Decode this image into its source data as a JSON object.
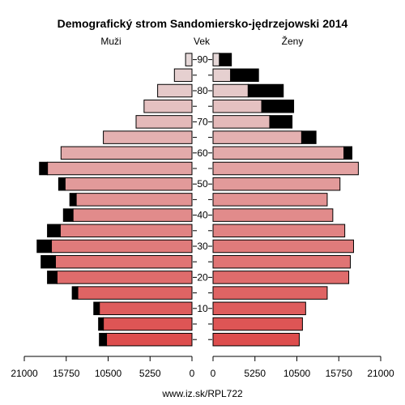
{
  "chart_data": {
    "type": "population-pyramid",
    "title": "Demografický strom Sandomiersko-jędrzejowski 2014",
    "left_label": "Muži",
    "center_label": "Vek",
    "right_label": "Ženy",
    "source": "www.iz.sk/RPL722",
    "x_ticks": [
      "21000",
      "15750",
      "10500",
      "5250",
      "0",
      "5250",
      "10500",
      "15750",
      "21000"
    ],
    "age_ticks": [
      "10",
      "20",
      "30",
      "40",
      "50",
      "60",
      "70",
      "80",
      "90"
    ],
    "xlim": [
      0,
      21000
    ],
    "age_groups": [
      "0-4",
      "5-9",
      "10-14",
      "15-19",
      "20-24",
      "25-29",
      "30-34",
      "35-39",
      "40-44",
      "45-49",
      "50-54",
      "55-59",
      "60-64",
      "65-69",
      "70-74",
      "75-79",
      "80-84",
      "85-89",
      "90+"
    ],
    "male_base": [
      10700,
      11100,
      11600,
      14300,
      16900,
      17100,
      17600,
      16500,
      14900,
      14500,
      15900,
      18100,
      16400,
      11100,
      7000,
      6000,
      4300,
      2200,
      800
    ],
    "male_excess": [
      900,
      600,
      700,
      700,
      1200,
      1800,
      1800,
      1600,
      1200,
      800,
      800,
      1000,
      0,
      0,
      0,
      0,
      0,
      0,
      0
    ],
    "female_base": [
      10800,
      11200,
      11600,
      14300,
      17000,
      17200,
      17600,
      16500,
      15000,
      14300,
      15900,
      18200,
      16400,
      11100,
      7100,
      6100,
      4400,
      2200,
      800
    ],
    "female_excess": [
      0,
      0,
      0,
      0,
      0,
      0,
      0,
      0,
      0,
      0,
      0,
      0,
      1000,
      1800,
      2800,
      4000,
      4400,
      3500,
      1500
    ],
    "colors": {
      "young": "#dd4d4d",
      "old": "#e6d8d8",
      "excess": "#000000",
      "stroke": "#000000"
    }
  }
}
